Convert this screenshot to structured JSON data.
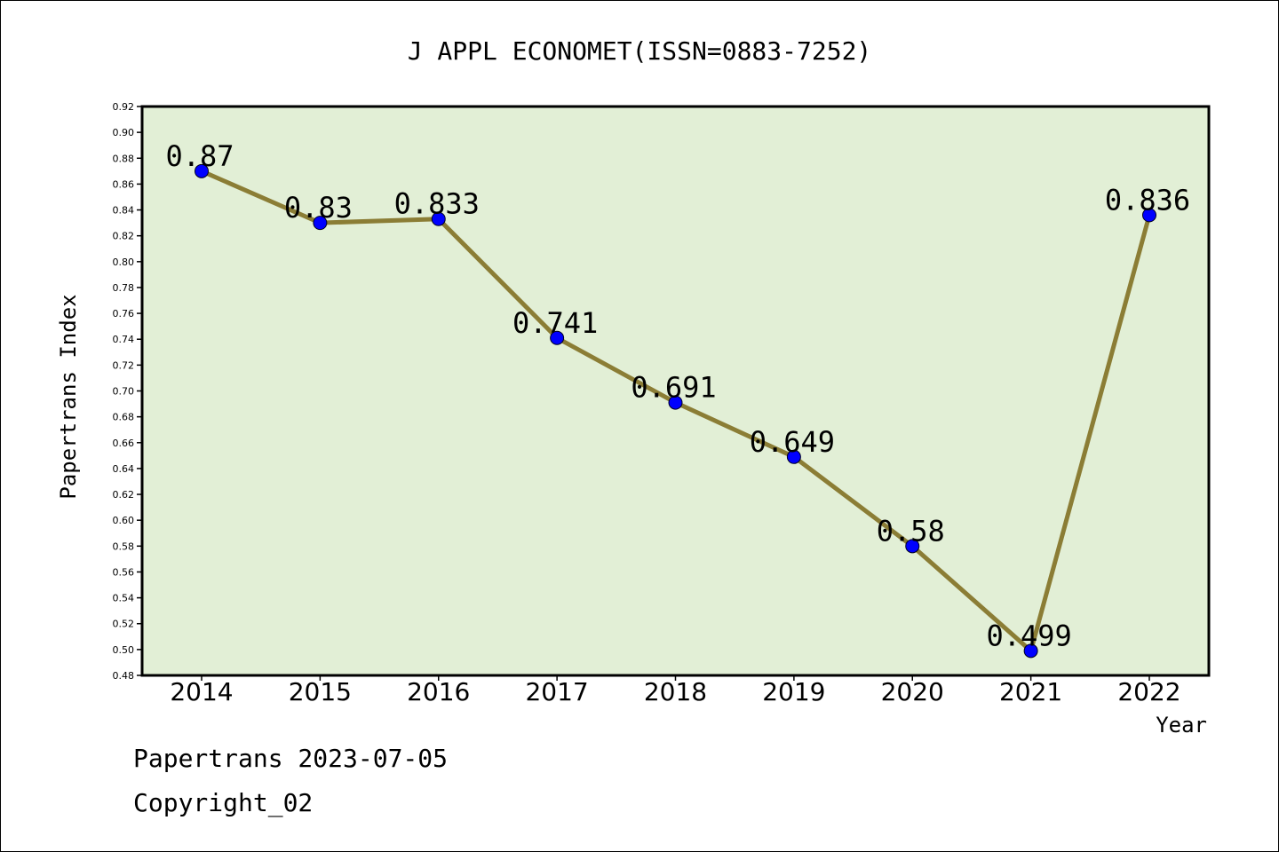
{
  "chart_data": {
    "type": "line",
    "title": "J APPL ECONOMET(ISSN=0883-7252)",
    "xlabel": "Year",
    "ylabel": "Papertrans Index",
    "categories": [
      "2014",
      "2015",
      "2016",
      "2017",
      "2018",
      "2019",
      "2020",
      "2021",
      "2022"
    ],
    "series": [
      {
        "values": [
          0.87,
          0.83,
          0.833,
          0.741,
          0.691,
          0.649,
          0.58,
          0.499,
          0.836
        ],
        "labels": [
          "0.87",
          "0.83",
          "0.833",
          "0.741",
          "0.691",
          "0.649",
          "0.58",
          "0.499",
          "0.836"
        ]
      }
    ],
    "ylim": [
      0.48,
      0.92
    ],
    "yticks": [
      "0.48",
      "0.50",
      "0.52",
      "0.54",
      "0.56",
      "0.58",
      "0.60",
      "0.62",
      "0.64",
      "0.66",
      "0.68",
      "0.70",
      "0.72",
      "0.74",
      "0.76",
      "0.78",
      "0.80",
      "0.82",
      "0.84",
      "0.86",
      "0.88",
      "0.90",
      "0.92"
    ],
    "grid": false,
    "colors": {
      "plot_background": "#e2efd6",
      "line": "#8b7d35",
      "marker": "#0000ff"
    }
  },
  "footer": {
    "line1": "Papertrans 2023-07-05",
    "line2": "Copyright_02"
  }
}
